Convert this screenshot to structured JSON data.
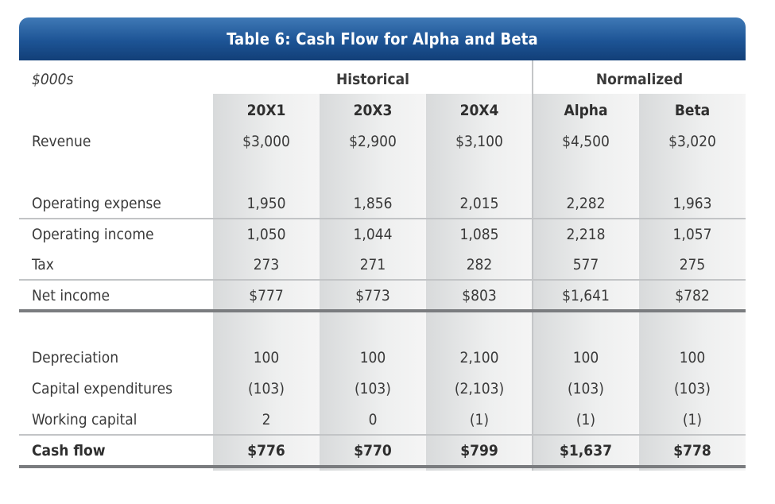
{
  "title": "Table 6: Cash Flow for Alpha and Beta",
  "unit_label": "$000s",
  "groups": {
    "historical": "Historical",
    "normalized": "Normalized"
  },
  "columns": [
    "20X1",
    "20X3",
    "20X4",
    "Alpha",
    "Beta"
  ],
  "rows": {
    "revenue": {
      "label": "Revenue",
      "values": [
        "$3,000",
        "$2,900",
        "$3,100",
        "$4,500",
        "$3,020"
      ]
    },
    "operating_expense": {
      "label": "Operating expense",
      "values": [
        "1,950",
        "1,856",
        "2,015",
        "2,282",
        "1,963"
      ]
    },
    "operating_income": {
      "label": "Operating income",
      "values": [
        "1,050",
        "1,044",
        "1,085",
        "2,218",
        "1,057"
      ]
    },
    "tax": {
      "label": "Tax",
      "values": [
        "273",
        "271",
        "282",
        "577",
        "275"
      ]
    },
    "net_income": {
      "label": "Net income",
      "values": [
        "$777",
        "$773",
        "$803",
        "$1,641",
        "$782"
      ]
    },
    "depreciation": {
      "label": "Depreciation",
      "values": [
        "100",
        "100",
        "2,100",
        "100",
        "100"
      ]
    },
    "capital_expenditures": {
      "label": "Capital expenditures",
      "values": [
        "(103)",
        "(103)",
        "(2,103)",
        "(103)",
        "(103)"
      ]
    },
    "working_capital": {
      "label": "Working capital",
      "values": [
        "2",
        "0",
        "(1)",
        "(1)",
        "(1)"
      ]
    },
    "cash_flow": {
      "label": "Cash flow",
      "values": [
        "$776",
        "$770",
        "$799",
        "$1,637",
        "$778"
      ]
    }
  },
  "colors": {
    "title_bar": "#1d5495",
    "title_text": "#ffffff",
    "band": "#e6e7e8",
    "rule": "#7a7c7f"
  }
}
